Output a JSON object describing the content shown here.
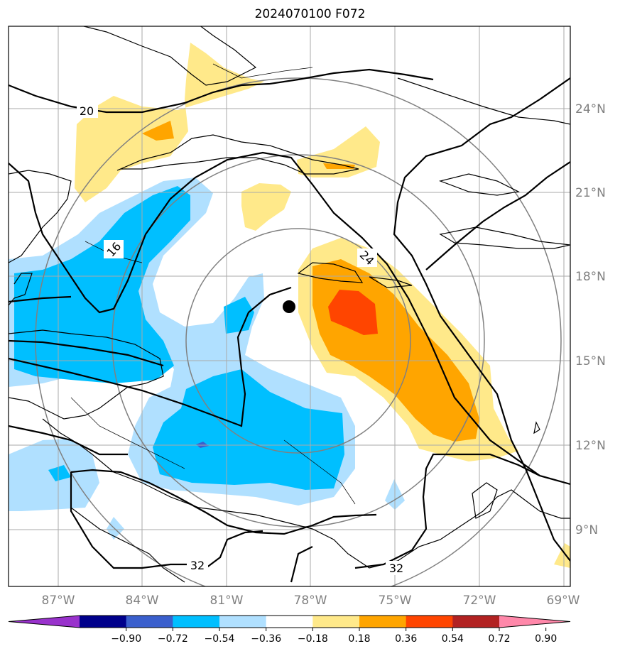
{
  "title": "2024070100 F072",
  "lat_labels": [
    "24°N",
    "21°N",
    "18°N",
    "15°N",
    "12°N",
    "9°N"
  ],
  "lon_labels": [
    "87°W",
    "84°W",
    "81°W",
    "78°W",
    "75°W",
    "72°W",
    "69°W"
  ],
  "contour_labels": [
    "20",
    "16",
    "24",
    "32",
    "32"
  ],
  "colorbar": {
    "tick_labels": [
      "−0.90",
      "−0.72",
      "−0.54",
      "−0.36",
      "−0.18",
      "0.18",
      "0.36",
      "0.54",
      "0.72",
      "0.90"
    ],
    "colors": [
      "#9932cc",
      "#00008b",
      "#3a5fcd",
      "#00bfff",
      "#b0e0ff",
      "#ffffff",
      "#ffe98a",
      "#ffa500",
      "#ff4500",
      "#b22222",
      "#ff88aa"
    ]
  },
  "colors": {
    "light_blue": "#b0e0ff",
    "blue": "#00bfff",
    "dark_blue": "#3a5fcd",
    "light_yellow": "#ffe98a",
    "orange": "#ffa500",
    "red_orange": "#ff4500",
    "grid": "#888888"
  },
  "chart_data": {
    "type": "map",
    "center_marker": {
      "lat": 17.0,
      "lon": -78.6
    },
    "lon_range": [
      -89,
      -69
    ],
    "lat_range": [
      7.5,
      27
    ],
    "contour_levels": [
      16,
      20,
      24,
      32
    ],
    "fill_levels": [
      -0.9,
      -0.72,
      -0.54,
      -0.36,
      -0.18,
      0.18,
      0.36,
      0.54,
      0.72,
      0.9
    ]
  }
}
